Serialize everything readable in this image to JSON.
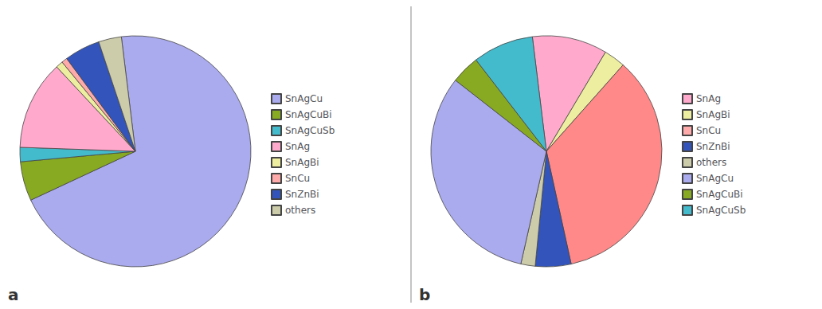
{
  "chart_data": [
    {
      "type": "pie",
      "annotation": "a",
      "categories": [
        "SnAgCu",
        "SnAgCuBi",
        "SnAgCuSb",
        "SnAg",
        "SnAgBi",
        "SnCu",
        "SnZnBi",
        "others"
      ],
      "values": [
        70,
        5.5,
        2.0,
        12.5,
        1.0,
        0.8,
        5.0,
        3.2
      ],
      "colors": [
        "#aaaaee",
        "#88aa22",
        "#44bbcc",
        "#ffaacc",
        "#eeeea0",
        "#ffaaaa",
        "#3355bb",
        "#ccccaa"
      ],
      "legend": "right"
    },
    {
      "type": "pie",
      "annotation": "b",
      "categories": [
        "SnAg",
        "SnAgBi",
        "SnCu",
        "SnZnBi",
        "others",
        "SnAgCu",
        "SnAgCuBi",
        "SnAgCuSb"
      ],
      "values": [
        10.5,
        3.0,
        35.0,
        5.0,
        2.0,
        32.0,
        4.0,
        8.5
      ],
      "colors": [
        "#ffaacc",
        "#eeeea0",
        "#ff8888",
        "#3355bb",
        "#ccccaa",
        "#aaaaee",
        "#88aa22",
        "#44bbcc"
      ],
      "legend": "right"
    }
  ]
}
